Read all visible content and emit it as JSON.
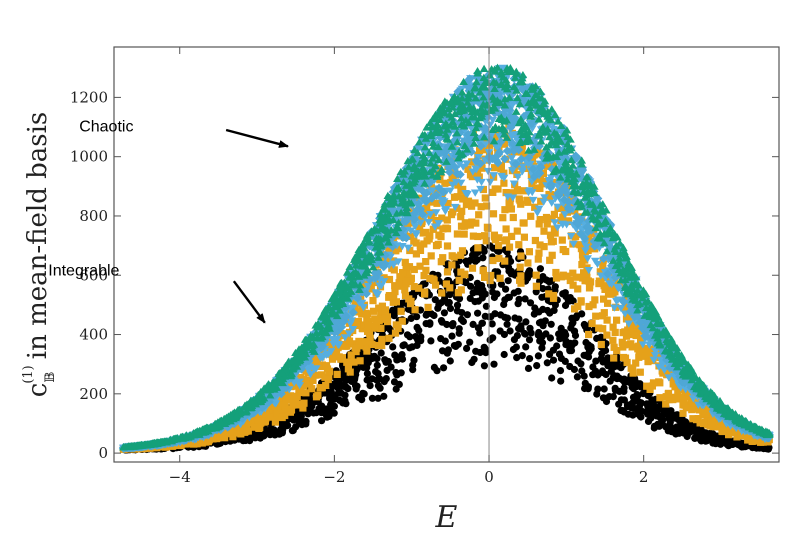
{
  "chart_data": {
    "type": "scatter",
    "title": "",
    "xlabel": "E",
    "ylabel": {
      "symbol": "c",
      "superscript": "(1)",
      "subscript": "𝔹",
      "text": "in mean-field basis"
    },
    "xlim": [
      -4.85,
      3.75
    ],
    "ylim": [
      -30,
      1370
    ],
    "x_ticks": [
      -4,
      -2,
      0,
      2
    ],
    "x_tick_labels": [
      "−4",
      "−2",
      "0",
      "2"
    ],
    "y_ticks": [
      0,
      200,
      400,
      600,
      800,
      1000,
      1200
    ],
    "y_tick_labels": [
      "0",
      "200",
      "400",
      "600",
      "800",
      "1000",
      "1200"
    ],
    "grid": false,
    "vertical_reference_line_x": 0,
    "annotations": [
      {
        "text": "Chaotic",
        "text_at": [
          -5.3,
          1085
        ],
        "arrow_from": [
          -3.4,
          1090
        ],
        "arrow_to": [
          -2.6,
          1035
        ]
      },
      {
        "text": "Integrable",
        "text_at": [
          -5.7,
          600
        ],
        "arrow_from": [
          -3.3,
          580
        ],
        "arrow_to": [
          -2.9,
          440
        ]
      }
    ],
    "series": [
      {
        "marker": "circle",
        "color": "#000000",
        "profile": {
          "peak": 620,
          "center": 0.1,
          "sigma_left": 1.55,
          "sigma_right": 1.25,
          "spread_low": 0.45,
          "spread_high": 1.12
        }
      },
      {
        "marker": "square",
        "color": "#e5a11a",
        "profile": {
          "peak": 1000,
          "center": 0.15,
          "sigma_left": 1.55,
          "sigma_right": 1.35,
          "spread_low": 0.55,
          "spread_high": 1.1
        }
      },
      {
        "marker": "triangle-down",
        "color": "#56aee0",
        "profile": {
          "peak": 1180,
          "center": 0.15,
          "sigma_left": 1.58,
          "sigma_right": 1.38,
          "spread_low": 0.72,
          "spread_high": 1.1
        }
      },
      {
        "marker": "diamond",
        "color": "#4fa7d6",
        "profile": {
          "peak": 1200,
          "center": 0.15,
          "sigma_left": 1.58,
          "sigma_right": 1.38,
          "spread_low": 0.8,
          "spread_high": 1.08
        }
      },
      {
        "marker": "triangle-up",
        "color": "#14a07a",
        "profile": {
          "peak": 1220,
          "center": 0.15,
          "sigma_left": 1.6,
          "sigma_right": 1.4,
          "spread_low": 0.85,
          "spread_high": 1.07
        }
      }
    ]
  }
}
